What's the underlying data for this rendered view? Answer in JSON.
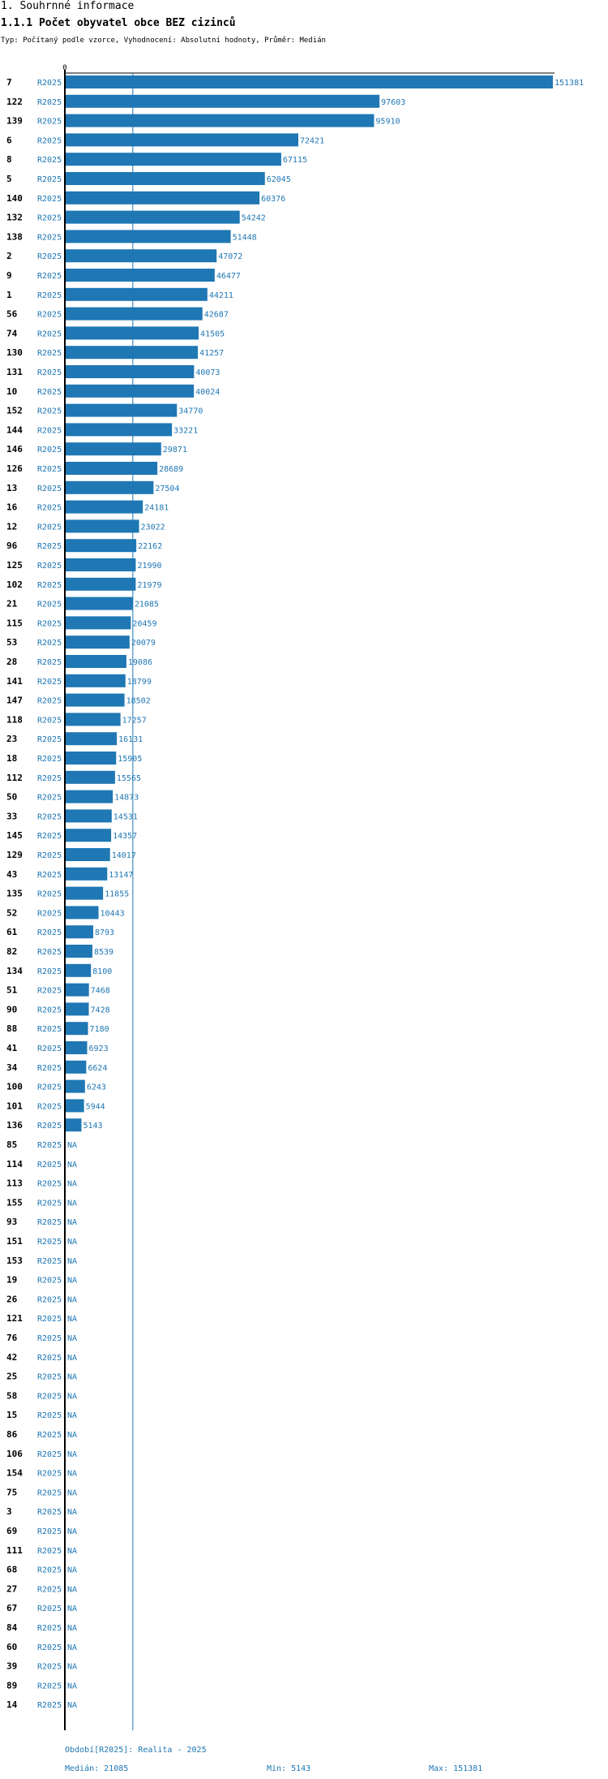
{
  "header": {
    "section_title": "1. Souhrnné informace",
    "chart_title": "1.1.1 Počet obyvatel obce BEZ cizinců",
    "meta_line": "Typ: Počítaný podle vzorce, Vyhodnocení: Absolutní hodnoty, Průměr: Medián"
  },
  "footer": {
    "period": "Období[R2025]: Realita - 2025",
    "median": "Medián: 21085",
    "min": "Min: 5143",
    "max": "Max: 151381"
  },
  "colors": {
    "bar": "#1f77b4",
    "label": "#1f77b4",
    "axis": "#000000",
    "median_line": "#1f77b4"
  },
  "chart_data": {
    "type": "bar",
    "orientation": "horizontal",
    "title": "1.1.1 Počet obyvatel obce BEZ cizinců",
    "period_label": "R2025",
    "na_label": "NA",
    "axis_zero_label": "0",
    "xlim": [
      0,
      151381
    ],
    "median": 21085,
    "rows": [
      {
        "id": "7",
        "value": 151381
      },
      {
        "id": "122",
        "value": 97603
      },
      {
        "id": "139",
        "value": 95910
      },
      {
        "id": "6",
        "value": 72421
      },
      {
        "id": "8",
        "value": 67115
      },
      {
        "id": "5",
        "value": 62045
      },
      {
        "id": "140",
        "value": 60376
      },
      {
        "id": "132",
        "value": 54242
      },
      {
        "id": "138",
        "value": 51448
      },
      {
        "id": "2",
        "value": 47072
      },
      {
        "id": "9",
        "value": 46477
      },
      {
        "id": "1",
        "value": 44211
      },
      {
        "id": "56",
        "value": 42687
      },
      {
        "id": "74",
        "value": 41505
      },
      {
        "id": "130",
        "value": 41257
      },
      {
        "id": "131",
        "value": 40073
      },
      {
        "id": "10",
        "value": 40024
      },
      {
        "id": "152",
        "value": 34770
      },
      {
        "id": "144",
        "value": 33221
      },
      {
        "id": "146",
        "value": 29871
      },
      {
        "id": "126",
        "value": 28689
      },
      {
        "id": "13",
        "value": 27504
      },
      {
        "id": "16",
        "value": 24181
      },
      {
        "id": "12",
        "value": 23022
      },
      {
        "id": "96",
        "value": 22162
      },
      {
        "id": "125",
        "value": 21990
      },
      {
        "id": "102",
        "value": 21979
      },
      {
        "id": "21",
        "value": 21085
      },
      {
        "id": "115",
        "value": 20459
      },
      {
        "id": "53",
        "value": 20079
      },
      {
        "id": "28",
        "value": 19086
      },
      {
        "id": "141",
        "value": 18799
      },
      {
        "id": "147",
        "value": 18502
      },
      {
        "id": "118",
        "value": 17257
      },
      {
        "id": "23",
        "value": 16131
      },
      {
        "id": "18",
        "value": 15905
      },
      {
        "id": "112",
        "value": 15565
      },
      {
        "id": "50",
        "value": 14873
      },
      {
        "id": "33",
        "value": 14531
      },
      {
        "id": "145",
        "value": 14357
      },
      {
        "id": "129",
        "value": 14017
      },
      {
        "id": "43",
        "value": 13147
      },
      {
        "id": "135",
        "value": 11855
      },
      {
        "id": "52",
        "value": 10443
      },
      {
        "id": "61",
        "value": 8793
      },
      {
        "id": "82",
        "value": 8539
      },
      {
        "id": "134",
        "value": 8100
      },
      {
        "id": "51",
        "value": 7468
      },
      {
        "id": "90",
        "value": 7428
      },
      {
        "id": "88",
        "value": 7180
      },
      {
        "id": "41",
        "value": 6923
      },
      {
        "id": "34",
        "value": 6624
      },
      {
        "id": "100",
        "value": 6243
      },
      {
        "id": "101",
        "value": 5944
      },
      {
        "id": "136",
        "value": 5143
      },
      {
        "id": "85",
        "value": null
      },
      {
        "id": "114",
        "value": null
      },
      {
        "id": "113",
        "value": null
      },
      {
        "id": "155",
        "value": null
      },
      {
        "id": "93",
        "value": null
      },
      {
        "id": "151",
        "value": null
      },
      {
        "id": "153",
        "value": null
      },
      {
        "id": "19",
        "value": null
      },
      {
        "id": "26",
        "value": null
      },
      {
        "id": "121",
        "value": null
      },
      {
        "id": "76",
        "value": null
      },
      {
        "id": "42",
        "value": null
      },
      {
        "id": "25",
        "value": null
      },
      {
        "id": "58",
        "value": null
      },
      {
        "id": "15",
        "value": null
      },
      {
        "id": "86",
        "value": null
      },
      {
        "id": "106",
        "value": null
      },
      {
        "id": "154",
        "value": null
      },
      {
        "id": "75",
        "value": null
      },
      {
        "id": "3",
        "value": null
      },
      {
        "id": "69",
        "value": null
      },
      {
        "id": "111",
        "value": null
      },
      {
        "id": "68",
        "value": null
      },
      {
        "id": "27",
        "value": null
      },
      {
        "id": "67",
        "value": null
      },
      {
        "id": "84",
        "value": null
      },
      {
        "id": "60",
        "value": null
      },
      {
        "id": "39",
        "value": null
      },
      {
        "id": "89",
        "value": null
      },
      {
        "id": "14",
        "value": null
      }
    ]
  }
}
